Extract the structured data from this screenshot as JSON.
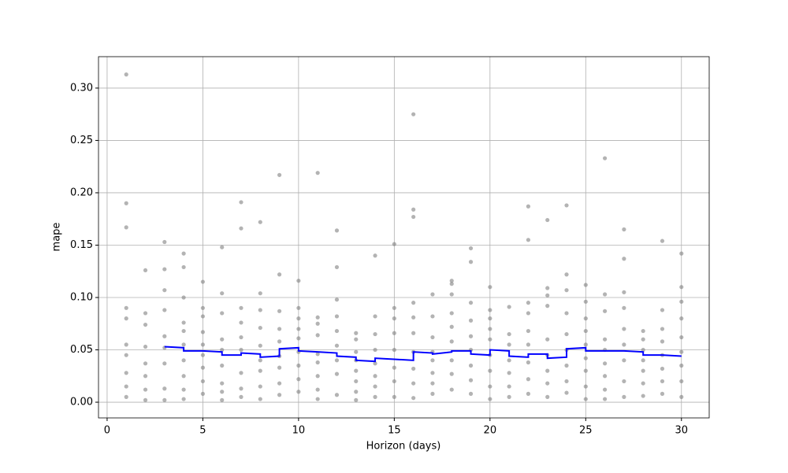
{
  "chart_data": {
    "type": "scatter",
    "xlabel": "Horizon (days)",
    "ylabel": "mape",
    "grid": true,
    "xlim": [
      -0.45,
      31.45
    ],
    "ylim": [
      -0.015,
      0.33
    ],
    "xticks": [
      0,
      5,
      10,
      15,
      20,
      25,
      30
    ],
    "yticks": [
      {
        "value": 0,
        "label": "0.00"
      },
      {
        "value": 0.05,
        "label": "0.05"
      },
      {
        "value": 0.1,
        "label": "0.10"
      },
      {
        "value": 0.15,
        "label": "0.15"
      },
      {
        "value": 0.2,
        "label": "0.20"
      },
      {
        "value": 0.25,
        "label": "0.25"
      },
      {
        "value": 0.3,
        "label": "0.30"
      }
    ],
    "point_color": "#808080",
    "groups": [
      {
        "x": 1,
        "values": [
          0.313,
          0.19,
          0.167,
          0.09,
          0.08,
          0.055,
          0.045,
          0.028,
          0.015,
          0.005
        ]
      },
      {
        "x": 2,
        "values": [
          0.126,
          0.085,
          0.074,
          0.053,
          0.037,
          0.025,
          0.012,
          0.002
        ]
      },
      {
        "x": 3,
        "values": [
          0.153,
          0.127,
          0.107,
          0.088,
          0.063,
          0.052,
          0.037,
          0.013,
          0.002
        ]
      },
      {
        "x": 4,
        "values": [
          0.142,
          0.129,
          0.1,
          0.076,
          0.068,
          0.055,
          0.04,
          0.025,
          0.012,
          0.003
        ]
      },
      {
        "x": 5,
        "values": [
          0.115,
          0.09,
          0.082,
          0.067,
          0.055,
          0.045,
          0.033,
          0.02,
          0.008
        ]
      },
      {
        "x": 6,
        "values": [
          0.148,
          0.104,
          0.085,
          0.06,
          0.05,
          0.035,
          0.018,
          0.01,
          0.002
        ]
      },
      {
        "x": 7,
        "values": [
          0.191,
          0.166,
          0.09,
          0.076,
          0.062,
          0.05,
          0.028,
          0.013,
          0.005
        ]
      },
      {
        "x": 8,
        "values": [
          0.172,
          0.104,
          0.088,
          0.071,
          0.054,
          0.04,
          0.03,
          0.015,
          0.003
        ]
      },
      {
        "x": 9,
        "values": [
          0.217,
          0.122,
          0.087,
          0.07,
          0.058,
          0.044,
          0.033,
          0.018,
          0.007
        ]
      },
      {
        "x": 10,
        "values": [
          0.116,
          0.09,
          0.08,
          0.07,
          0.061,
          0.048,
          0.035,
          0.022,
          0.01
        ]
      },
      {
        "x": 11,
        "values": [
          0.219,
          0.081,
          0.075,
          0.064,
          0.046,
          0.038,
          0.025,
          0.012,
          0.003
        ]
      },
      {
        "x": 12,
        "values": [
          0.164,
          0.129,
          0.098,
          0.082,
          0.068,
          0.054,
          0.04,
          0.027,
          0.007
        ]
      },
      {
        "x": 13,
        "values": [
          0.066,
          0.06,
          0.048,
          0.04,
          0.03,
          0.02,
          0.01,
          0.002
        ]
      },
      {
        "x": 14,
        "values": [
          0.14,
          0.082,
          0.065,
          0.05,
          0.037,
          0.025,
          0.015,
          0.005
        ]
      },
      {
        "x": 15,
        "values": [
          0.151,
          0.09,
          0.08,
          0.066,
          0.05,
          0.033,
          0.02,
          0.005
        ]
      },
      {
        "x": 16,
        "values": [
          0.275,
          0.184,
          0.177,
          0.095,
          0.081,
          0.066,
          0.048,
          0.032,
          0.018,
          0.004
        ]
      },
      {
        "x": 17,
        "values": [
          0.103,
          0.082,
          0.062,
          0.048,
          0.04,
          0.028,
          0.018,
          0.008
        ]
      },
      {
        "x": 18,
        "values": [
          0.116,
          0.113,
          0.103,
          0.085,
          0.072,
          0.058,
          0.04,
          0.027,
          0.012
        ]
      },
      {
        "x": 19,
        "values": [
          0.147,
          0.134,
          0.095,
          0.078,
          0.063,
          0.05,
          0.035,
          0.021,
          0.008
        ]
      },
      {
        "x": 20,
        "values": [
          0.11,
          0.088,
          0.08,
          0.07,
          0.06,
          0.045,
          0.03,
          0.015,
          0.003
        ]
      },
      {
        "x": 21,
        "values": [
          0.091,
          0.065,
          0.055,
          0.04,
          0.028,
          0.015,
          0.005
        ]
      },
      {
        "x": 22,
        "values": [
          0.187,
          0.155,
          0.095,
          0.085,
          0.068,
          0.055,
          0.038,
          0.022,
          0.008
        ]
      },
      {
        "x": 23,
        "values": [
          0.174,
          0.109,
          0.102,
          0.092,
          0.06,
          0.045,
          0.03,
          0.018,
          0.005
        ]
      },
      {
        "x": 24,
        "values": [
          0.188,
          0.122,
          0.107,
          0.085,
          0.065,
          0.05,
          0.035,
          0.02,
          0.009
        ]
      },
      {
        "x": 25,
        "values": [
          0.112,
          0.096,
          0.08,
          0.068,
          0.055,
          0.042,
          0.03,
          0.015,
          0.003
        ]
      },
      {
        "x": 26,
        "values": [
          0.233,
          0.103,
          0.087,
          0.06,
          0.05,
          0.037,
          0.025,
          0.012,
          0.003
        ]
      },
      {
        "x": 27,
        "values": [
          0.165,
          0.137,
          0.105,
          0.09,
          0.07,
          0.055,
          0.04,
          0.02,
          0.005
        ]
      },
      {
        "x": 28,
        "values": [
          0.068,
          0.06,
          0.05,
          0.04,
          0.03,
          0.018,
          0.006
        ]
      },
      {
        "x": 29,
        "values": [
          0.154,
          0.088,
          0.07,
          0.058,
          0.045,
          0.032,
          0.02,
          0.008
        ]
      },
      {
        "x": 30,
        "values": [
          0.142,
          0.11,
          0.096,
          0.08,
          0.062,
          0.048,
          0.035,
          0.02,
          0.005
        ]
      }
    ],
    "line": {
      "color": "#0000ff",
      "x": [
        3,
        4,
        4,
        5,
        6,
        6,
        7,
        7,
        8,
        8,
        9,
        9,
        10,
        10,
        11,
        12,
        12,
        13,
        13,
        14,
        14,
        15,
        16,
        16,
        17,
        17,
        18,
        18,
        19,
        19,
        20,
        20,
        21,
        21,
        22,
        22,
        23,
        23,
        24,
        24,
        25,
        25,
        26,
        27,
        28,
        28,
        29,
        30
      ],
      "values": [
        0.053,
        0.052,
        0.049,
        0.049,
        0.048,
        0.045,
        0.045,
        0.047,
        0.046,
        0.043,
        0.044,
        0.051,
        0.052,
        0.049,
        0.048,
        0.047,
        0.044,
        0.043,
        0.04,
        0.039,
        0.042,
        0.041,
        0.04,
        0.048,
        0.047,
        0.046,
        0.048,
        0.049,
        0.049,
        0.046,
        0.045,
        0.05,
        0.049,
        0.044,
        0.043,
        0.046,
        0.046,
        0.042,
        0.043,
        0.051,
        0.052,
        0.049,
        0.049,
        0.049,
        0.048,
        0.045,
        0.045,
        0.044
      ]
    }
  }
}
